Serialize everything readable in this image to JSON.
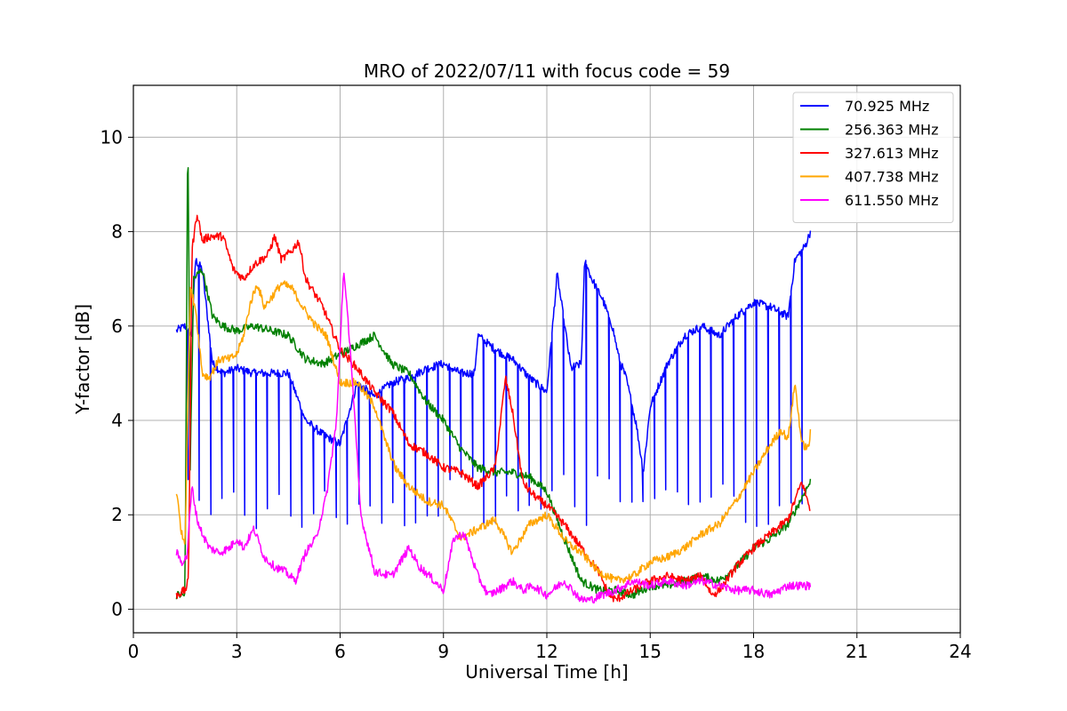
{
  "chart_data": {
    "type": "line",
    "title": "MRO of 2022/07/11 with focus code = 59",
    "xlabel": "Universal Time [h]",
    "ylabel": "Y-factor [dB]",
    "xlim": [
      0,
      24
    ],
    "ylim": [
      -0.5,
      11.1
    ],
    "xticks": [
      "0",
      "3",
      "6",
      "9",
      "12",
      "15",
      "18",
      "21",
      "24"
    ],
    "yticks": [
      "0",
      "2",
      "4",
      "6",
      "8",
      "10"
    ],
    "grid": true,
    "legend_position": "upper-right",
    "series": [
      {
        "name": "  70.925 MHz",
        "color": "#0000ff",
        "dips_to": 2.3,
        "dips_every_h": 0.33,
        "x": [
          1.25,
          1.5,
          1.7,
          1.8,
          2.0,
          2.3,
          2.6,
          3.0,
          3.5,
          4.0,
          4.5,
          5.0,
          5.5,
          6.0,
          6.5,
          7.0,
          7.5,
          8.0,
          8.5,
          9.0,
          9.5,
          9.9,
          10.0,
          10.5,
          11.0,
          11.5,
          12.0,
          12.3,
          12.7,
          13.0,
          13.1,
          13.3,
          13.6,
          13.9,
          14.1,
          14.3,
          14.6,
          14.8,
          15.0,
          15.5,
          16.0,
          16.5,
          17.0,
          17.5,
          18.0,
          18.5,
          19.0,
          19.2,
          19.5,
          19.65
        ],
        "y": [
          5.9,
          6.0,
          5.8,
          7.4,
          7.2,
          5.2,
          5.0,
          5.1,
          5.0,
          5.0,
          5.0,
          4.0,
          3.7,
          3.5,
          4.8,
          4.5,
          4.8,
          4.9,
          5.1,
          5.2,
          5.0,
          5.0,
          5.8,
          5.5,
          5.3,
          4.9,
          4.6,
          7.1,
          5.1,
          5.2,
          7.4,
          7.0,
          6.6,
          6.0,
          5.3,
          4.9,
          3.9,
          2.9,
          4.3,
          5.2,
          5.8,
          6.0,
          5.8,
          6.2,
          6.5,
          6.4,
          6.2,
          7.4,
          7.7,
          8.0
        ]
      },
      {
        "name": "256.363 MHz",
        "color": "#008000",
        "x": [
          1.25,
          1.5,
          1.58,
          1.65,
          1.75,
          2.0,
          2.3,
          2.6,
          3.0,
          3.5,
          4.0,
          4.5,
          5.0,
          5.5,
          6.0,
          6.5,
          7.0,
          7.5,
          8.0,
          8.5,
          9.0,
          9.5,
          10.0,
          10.5,
          11.0,
          11.5,
          12.0,
          12.5,
          13.0,
          13.5,
          14.0,
          14.5,
          15.0,
          15.5,
          16.0,
          16.5,
          17.0,
          17.5,
          18.0,
          18.5,
          19.0,
          19.5,
          19.65
        ],
        "y": [
          0.3,
          0.3,
          10.5,
          3.0,
          7.0,
          7.2,
          6.2,
          6.0,
          5.9,
          6.0,
          5.9,
          5.8,
          5.3,
          5.2,
          5.4,
          5.6,
          5.8,
          5.2,
          5.0,
          4.4,
          4.0,
          3.4,
          3.0,
          2.9,
          2.9,
          2.8,
          2.5,
          1.5,
          0.6,
          0.4,
          0.4,
          0.3,
          0.5,
          0.5,
          0.6,
          0.7,
          0.6,
          0.9,
          1.3,
          1.5,
          1.8,
          2.5,
          2.7
        ]
      },
      {
        "name": "327.613 MHz",
        "color": "#ff0000",
        "x": [
          1.25,
          1.5,
          1.6,
          1.7,
          1.85,
          2.0,
          2.2,
          2.6,
          2.9,
          3.2,
          3.5,
          3.9,
          4.1,
          4.3,
          4.6,
          4.8,
          5.0,
          5.5,
          6.0,
          6.5,
          7.0,
          7.5,
          8.0,
          8.5,
          9.0,
          9.5,
          10.0,
          10.5,
          10.8,
          11.0,
          11.3,
          11.5,
          11.8,
          12.0,
          12.5,
          13.0,
          13.5,
          13.8,
          14.0,
          14.5,
          15.0,
          15.5,
          16.0,
          16.5,
          16.8,
          17.0,
          17.5,
          18.0,
          18.5,
          19.0,
          19.4,
          19.65
        ],
        "y": [
          0.3,
          0.4,
          0.6,
          7.6,
          8.4,
          7.8,
          7.9,
          7.9,
          7.2,
          7.0,
          7.3,
          7.5,
          7.9,
          7.4,
          7.6,
          7.8,
          7.0,
          6.4,
          5.5,
          5.1,
          4.6,
          4.2,
          3.5,
          3.3,
          3.0,
          2.9,
          2.6,
          3.0,
          4.9,
          4.2,
          2.7,
          2.5,
          2.3,
          2.2,
          1.8,
          1.3,
          0.8,
          0.3,
          0.2,
          0.4,
          0.6,
          0.7,
          0.6,
          0.7,
          0.3,
          0.4,
          0.9,
          1.3,
          1.6,
          1.9,
          2.7,
          2.1
        ]
      },
      {
        "name": "407.738 MHz",
        "color": "#ffa500",
        "x": [
          1.25,
          1.4,
          1.5,
          1.65,
          1.8,
          2.0,
          2.2,
          2.5,
          2.8,
          3.0,
          3.2,
          3.4,
          3.6,
          3.8,
          4.0,
          4.3,
          4.6,
          5.0,
          5.3,
          5.6,
          6.0,
          6.5,
          7.0,
          7.3,
          7.6,
          8.0,
          8.5,
          9.0,
          9.5,
          10.0,
          10.5,
          11.0,
          11.5,
          12.0,
          12.3,
          12.6,
          13.0,
          13.5,
          14.0,
          14.5,
          15.0,
          15.5,
          16.0,
          16.5,
          17.0,
          17.5,
          18.0,
          18.5,
          18.8,
          19.0,
          19.2,
          19.4,
          19.6,
          19.65
        ],
        "y": [
          2.5,
          1.6,
          1.4,
          6.8,
          6.4,
          5.0,
          4.9,
          5.3,
          5.3,
          5.4,
          5.8,
          6.5,
          6.9,
          6.4,
          6.6,
          6.9,
          6.8,
          6.3,
          6.0,
          5.8,
          4.8,
          4.8,
          4.3,
          3.6,
          3.0,
          2.6,
          2.3,
          2.2,
          1.5,
          1.7,
          1.9,
          1.2,
          1.8,
          2.0,
          1.7,
          1.4,
          1.2,
          0.8,
          0.6,
          0.7,
          1.0,
          1.1,
          1.3,
          1.6,
          1.8,
          2.3,
          2.9,
          3.5,
          3.8,
          3.6,
          4.8,
          3.5,
          3.4,
          3.8
        ]
      },
      {
        "name": "611.550 MHz",
        "color": "#ff00ff",
        "x": [
          1.25,
          1.4,
          1.55,
          1.7,
          1.85,
          2.0,
          2.2,
          2.5,
          2.8,
          3.0,
          3.2,
          3.5,
          3.8,
          4.1,
          4.4,
          4.7,
          5.0,
          5.3,
          5.6,
          5.9,
          6.1,
          6.3,
          6.6,
          7.0,
          7.5,
          8.0,
          8.3,
          8.6,
          9.0,
          9.3,
          9.6,
          10.0,
          10.3,
          10.6,
          11.0,
          11.3,
          11.6,
          12.0,
          12.5,
          13.0,
          13.3,
          13.6,
          14.0,
          14.5,
          15.0,
          15.5,
          16.0,
          16.5,
          17.0,
          17.5,
          18.0,
          18.5,
          19.0,
          19.65
        ],
        "y": [
          1.2,
          1.0,
          1.1,
          2.6,
          1.9,
          1.6,
          1.3,
          1.2,
          1.3,
          1.5,
          1.3,
          1.7,
          1.1,
          0.9,
          0.8,
          0.6,
          1.2,
          1.5,
          2.4,
          4.0,
          7.2,
          5.5,
          2.0,
          0.8,
          0.7,
          1.3,
          0.9,
          0.7,
          0.4,
          1.5,
          1.6,
          0.7,
          0.3,
          0.4,
          0.6,
          0.4,
          0.5,
          0.3,
          0.6,
          0.2,
          0.2,
          0.3,
          0.4,
          0.6,
          0.5,
          0.6,
          0.5,
          0.6,
          0.5,
          0.4,
          0.4,
          0.3,
          0.5,
          0.5
        ]
      }
    ]
  }
}
